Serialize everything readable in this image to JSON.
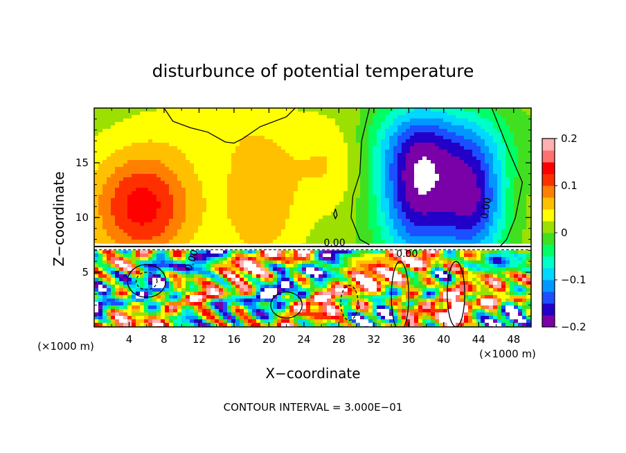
{
  "chart_data": {
    "type": "heatmap",
    "title": "disturbunce of potential temperature",
    "xlabel": "X−coordinate",
    "ylabel": "Z−coordinate",
    "x_unit": "(×1000 m)",
    "y_unit": "(×1000 m)",
    "xlim": [
      0,
      50
    ],
    "ylim": [
      0,
      20
    ],
    "x_ticks": [
      4,
      8,
      12,
      16,
      20,
      24,
      28,
      32,
      36,
      40,
      44,
      48
    ],
    "y_ticks": [
      5,
      10,
      15
    ],
    "colorbar": {
      "min": -0.2,
      "max": 0.2,
      "ticks": [
        0.2,
        0.1,
        0,
        -0.1,
        -0.2
      ],
      "tick_labels": [
        "0.2",
        "0.1",
        "0",
        "−0.1",
        "−0.2"
      ],
      "colors": [
        "#7a00a8",
        "#2200c8",
        "#1b4fff",
        "#0097ff",
        "#00d8ff",
        "#00ffc8",
        "#00ff64",
        "#40e020",
        "#9be000",
        "#ffff00",
        "#ffc000",
        "#ff8000",
        "#ff3000",
        "#ff0000",
        "#ff7070",
        "#ffb0b0"
      ]
    },
    "contour_labels": [
      "0.00",
      "0.00",
      "0.00",
      "0.00"
    ],
    "contour_interval_text": "CONTOUR INTERVAL = 3.000E−01",
    "grid": false
  }
}
